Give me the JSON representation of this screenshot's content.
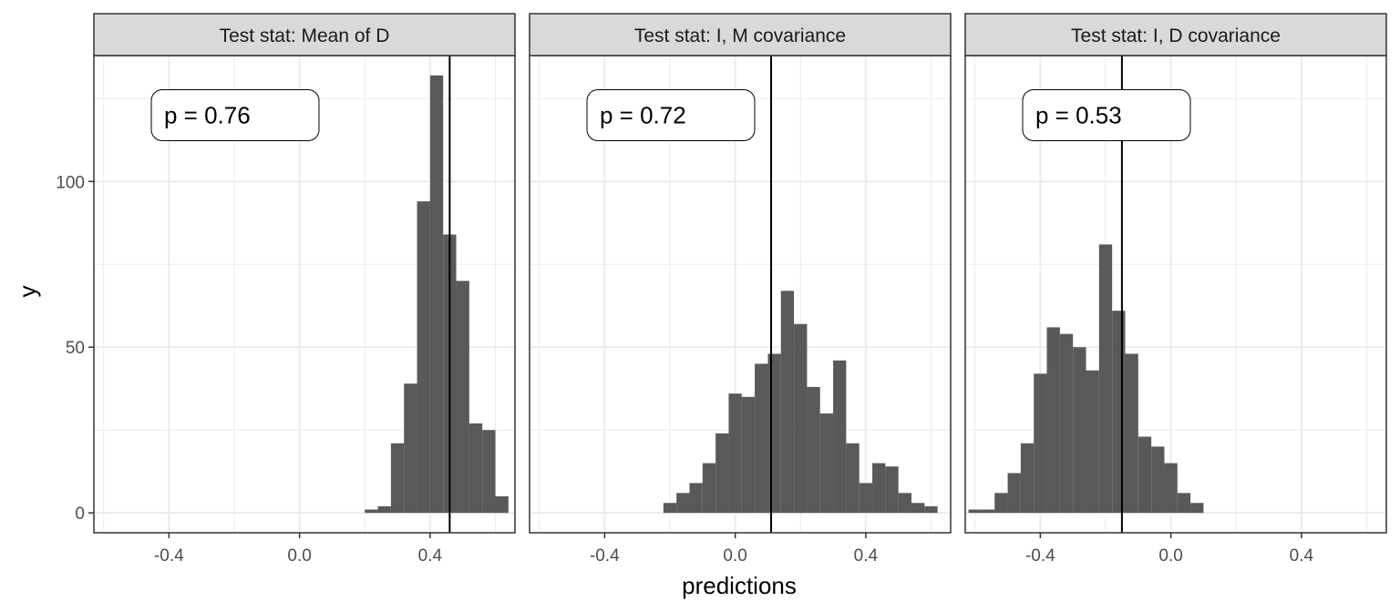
{
  "chart_data": {
    "type": "bar",
    "xlabel": "predictions",
    "ylabel": "y",
    "xlim": [
      -0.63,
      0.66
    ],
    "ylim": [
      -6,
      138
    ],
    "x_ticks": [
      -0.4,
      0.0,
      0.4
    ],
    "x_tick_labels": [
      "-0.4",
      "0.0",
      "0.4"
    ],
    "y_ticks": [
      0,
      50,
      100
    ],
    "y_tick_labels": [
      "0",
      "50",
      "100"
    ],
    "grid": true,
    "bin_width": 0.04,
    "colors": {
      "bar": "#595959",
      "strip_bg": "#d9d9d9",
      "grid": "#ebebeb",
      "border": "#333333",
      "vline": "#000000"
    },
    "panels": [
      {
        "strip": "Test stat: Mean of D",
        "p_label": "p = 0.76",
        "observed": 0.46,
        "label_x": -0.2,
        "label_y": 120,
        "bins": [
          0.2,
          0.24,
          0.28,
          0.32,
          0.36,
          0.4,
          0.44,
          0.48,
          0.52,
          0.56,
          0.6,
          0.64
        ],
        "counts": [
          1,
          2,
          21,
          39,
          94,
          132,
          84,
          70,
          27,
          25,
          5,
          0
        ]
      },
      {
        "strip": "Test stat: I, M covariance",
        "p_label": "p = 0.72",
        "observed": 0.11,
        "label_x": -0.2,
        "label_y": 120,
        "bins": [
          -0.22,
          -0.18,
          -0.14,
          -0.1,
          -0.06,
          -0.02,
          0.02,
          0.06,
          0.1,
          0.14,
          0.18,
          0.22,
          0.26,
          0.3,
          0.34,
          0.38,
          0.42,
          0.46,
          0.5,
          0.54,
          0.58
        ],
        "counts": [
          3,
          6,
          9,
          15,
          24,
          36,
          35,
          45,
          48,
          67,
          57,
          38,
          30,
          46,
          21,
          9,
          15,
          14,
          6,
          3,
          2
        ]
      },
      {
        "strip": "Test stat: I, D covariance",
        "p_label": "p = 0.53",
        "observed": -0.15,
        "label_x": -0.2,
        "label_y": 120,
        "bins": [
          -0.62,
          -0.58,
          -0.54,
          -0.5,
          -0.46,
          -0.42,
          -0.38,
          -0.34,
          -0.3,
          -0.26,
          -0.22,
          -0.18,
          -0.14,
          -0.1,
          -0.06,
          -0.02,
          0.02,
          0.06
        ],
        "counts": [
          1,
          1,
          6,
          12,
          21,
          42,
          56,
          54,
          50,
          43,
          81,
          61,
          48,
          23,
          20,
          15,
          6,
          3
        ]
      }
    ]
  }
}
